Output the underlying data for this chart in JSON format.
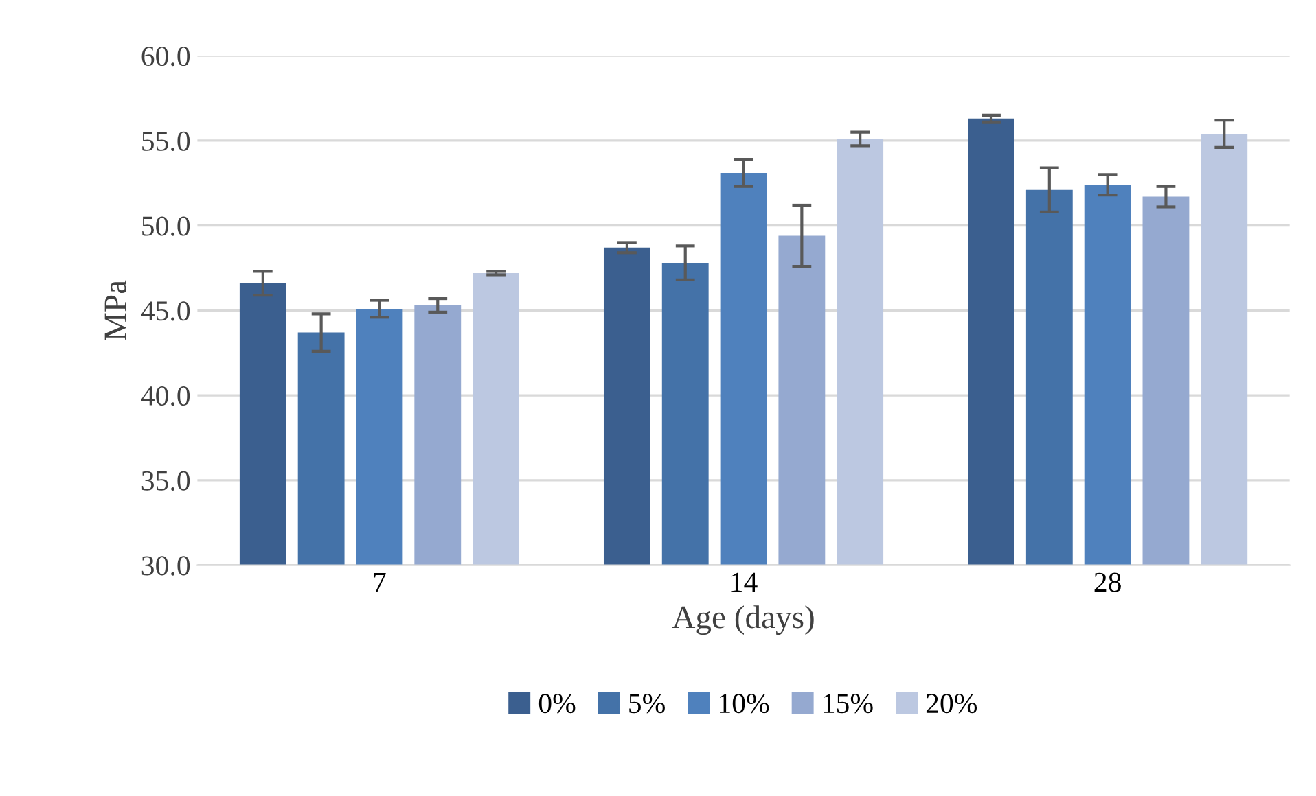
{
  "chart_data": {
    "type": "bar",
    "xlabel": "Age (days)",
    "ylabel": "MPa",
    "categories": [
      "7",
      "14",
      "28"
    ],
    "series": [
      {
        "name": "0%",
        "color": "#3b5f8f",
        "values": [
          46.6,
          48.7,
          56.3
        ],
        "errors": [
          0.7,
          0.3,
          0.2
        ]
      },
      {
        "name": "5%",
        "color": "#4472a8",
        "values": [
          43.7,
          47.8,
          52.1
        ],
        "errors": [
          1.1,
          1.0,
          1.3
        ]
      },
      {
        "name": "10%",
        "color": "#4f81bd",
        "values": [
          45.1,
          53.1,
          52.4
        ],
        "errors": [
          0.5,
          0.8,
          0.6
        ]
      },
      {
        "name": "15%",
        "color": "#95a9d0",
        "values": [
          45.3,
          49.4,
          51.7
        ],
        "errors": [
          0.4,
          1.8,
          0.6
        ]
      },
      {
        "name": "20%",
        "color": "#bcc8e1",
        "values": [
          47.2,
          55.1,
          55.4
        ],
        "errors": [
          0.1,
          0.4,
          0.8
        ]
      }
    ],
    "ylim": [
      30,
      60
    ],
    "yticks": [
      {
        "value": 30,
        "label": "30.0"
      },
      {
        "value": 35,
        "label": "35.0"
      },
      {
        "value": 40,
        "label": "40.0"
      },
      {
        "value": 45,
        "label": "45.0"
      },
      {
        "value": 50,
        "label": "50.0"
      },
      {
        "value": 55,
        "label": "55.0"
      },
      {
        "value": 60,
        "label": "60.0"
      }
    ],
    "grid": "y",
    "legend": "bottom"
  }
}
